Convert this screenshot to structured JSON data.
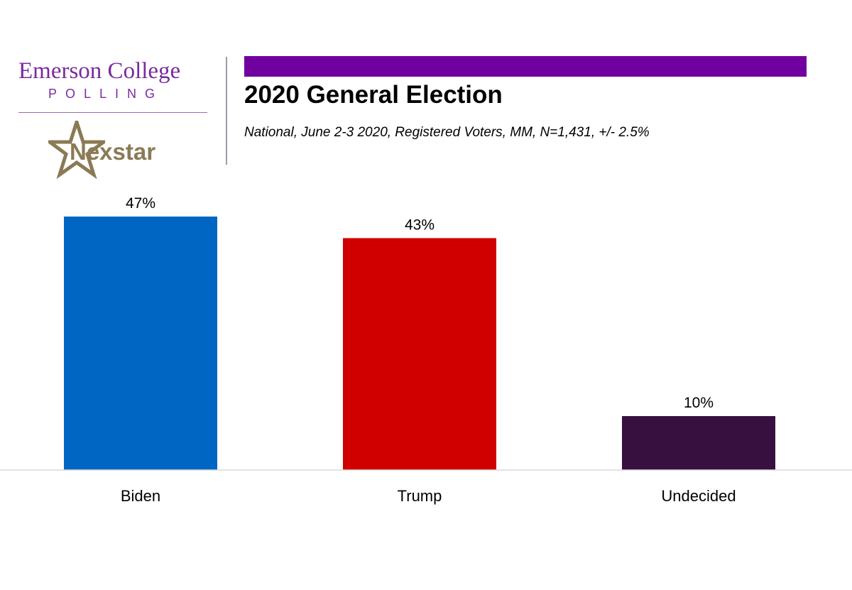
{
  "branding": {
    "emerson": "Emerson College",
    "polling": "POLLING",
    "nexstar": "Nexstar",
    "accent_color": "#7000a0"
  },
  "chart_data": {
    "type": "bar",
    "title": "2020 General Election",
    "subtitle": "National, June 2-3 2020, Registered Voters, MM,  N=1,431,   +/-  2.5%",
    "categories": [
      "Biden",
      "Trump",
      "Undecided"
    ],
    "values": [
      47,
      43,
      10
    ],
    "data_labels": [
      "47%",
      "43%",
      "10%"
    ],
    "colors": [
      "#0066c4",
      "#d00000",
      "#37103f"
    ],
    "ylim": [
      0,
      47
    ],
    "grid": false,
    "legend": "none"
  }
}
